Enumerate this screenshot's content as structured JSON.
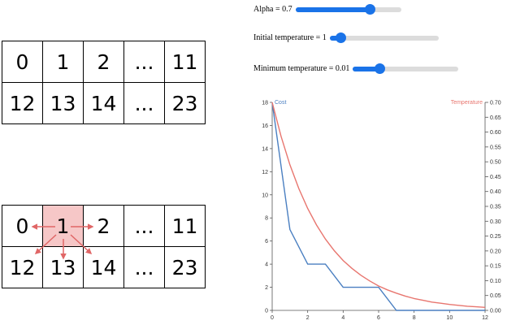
{
  "grid_top": {
    "rows": [
      [
        "0",
        "1",
        "2",
        "...",
        "11"
      ],
      [
        "12",
        "13",
        "14",
        "...",
        "23"
      ]
    ]
  },
  "grid_bottom": {
    "rows": [
      [
        "0",
        "1",
        "2",
        "...",
        "11"
      ],
      [
        "12",
        "13",
        "14",
        "...",
        "23"
      ]
    ],
    "highlight_color": "#f6c7c7",
    "arrow_color": "#e06666"
  },
  "controls": {
    "alpha": {
      "label": "Alpha = 0.7",
      "value": 0.7,
      "min": 0,
      "max": 1
    },
    "initial_temperature": {
      "label": "Initial temperature = 1",
      "value": 1,
      "min": 0,
      "max": 10
    },
    "minimum_temperature": {
      "label": "Minimum temperature = 0.01",
      "value": 0.01,
      "min": 0,
      "max": 0.04
    },
    "accent": "#1a73e8"
  },
  "chart_data": {
    "type": "line",
    "xticks": [
      "0",
      "2",
      "4",
      "6",
      "8",
      "10",
      "12"
    ],
    "xlim": [
      0,
      12
    ],
    "left_axis": {
      "label": "Cost",
      "ylim": [
        0,
        18
      ],
      "ticks": [
        "0",
        "2",
        "4",
        "6",
        "8",
        "10",
        "12",
        "14",
        "16",
        "18"
      ],
      "color": "#4a7fc1"
    },
    "right_axis": {
      "label": "Temperature",
      "ylim": [
        0,
        0.7
      ],
      "ticks": [
        "0.00",
        "0.05",
        "0.10",
        "0.15",
        "0.20",
        "0.25",
        "0.30",
        "0.35",
        "0.40",
        "0.45",
        "0.50",
        "0.55",
        "0.60",
        "0.65",
        "0.70"
      ],
      "color": "#e8766f"
    },
    "series": [
      {
        "name": "Cost",
        "axis": "left",
        "color": "#4a7fc1",
        "x": [
          0,
          1,
          2,
          3,
          4,
          5,
          6,
          7,
          8,
          9,
          10,
          11,
          12
        ],
        "y": [
          18,
          7,
          4,
          4,
          2,
          2,
          2,
          0,
          0,
          0,
          0,
          0,
          0
        ]
      },
      {
        "name": "Temperature",
        "axis": "right",
        "color": "#e8766f",
        "x": [
          0,
          0.5,
          1,
          1.5,
          2,
          2.5,
          3,
          3.5,
          4,
          4.5,
          5,
          5.5,
          6,
          6.5,
          7,
          7.5,
          8,
          8.5,
          9,
          9.5,
          10,
          10.5,
          11,
          11.5,
          12
        ],
        "y": [
          0.7,
          0.586,
          0.49,
          0.41,
          0.343,
          0.287,
          0.24,
          0.201,
          0.168,
          0.141,
          0.118,
          0.099,
          0.082,
          0.069,
          0.058,
          0.048,
          0.04,
          0.034,
          0.028,
          0.024,
          0.02,
          0.017,
          0.014,
          0.012,
          0.01
        ]
      }
    ]
  }
}
